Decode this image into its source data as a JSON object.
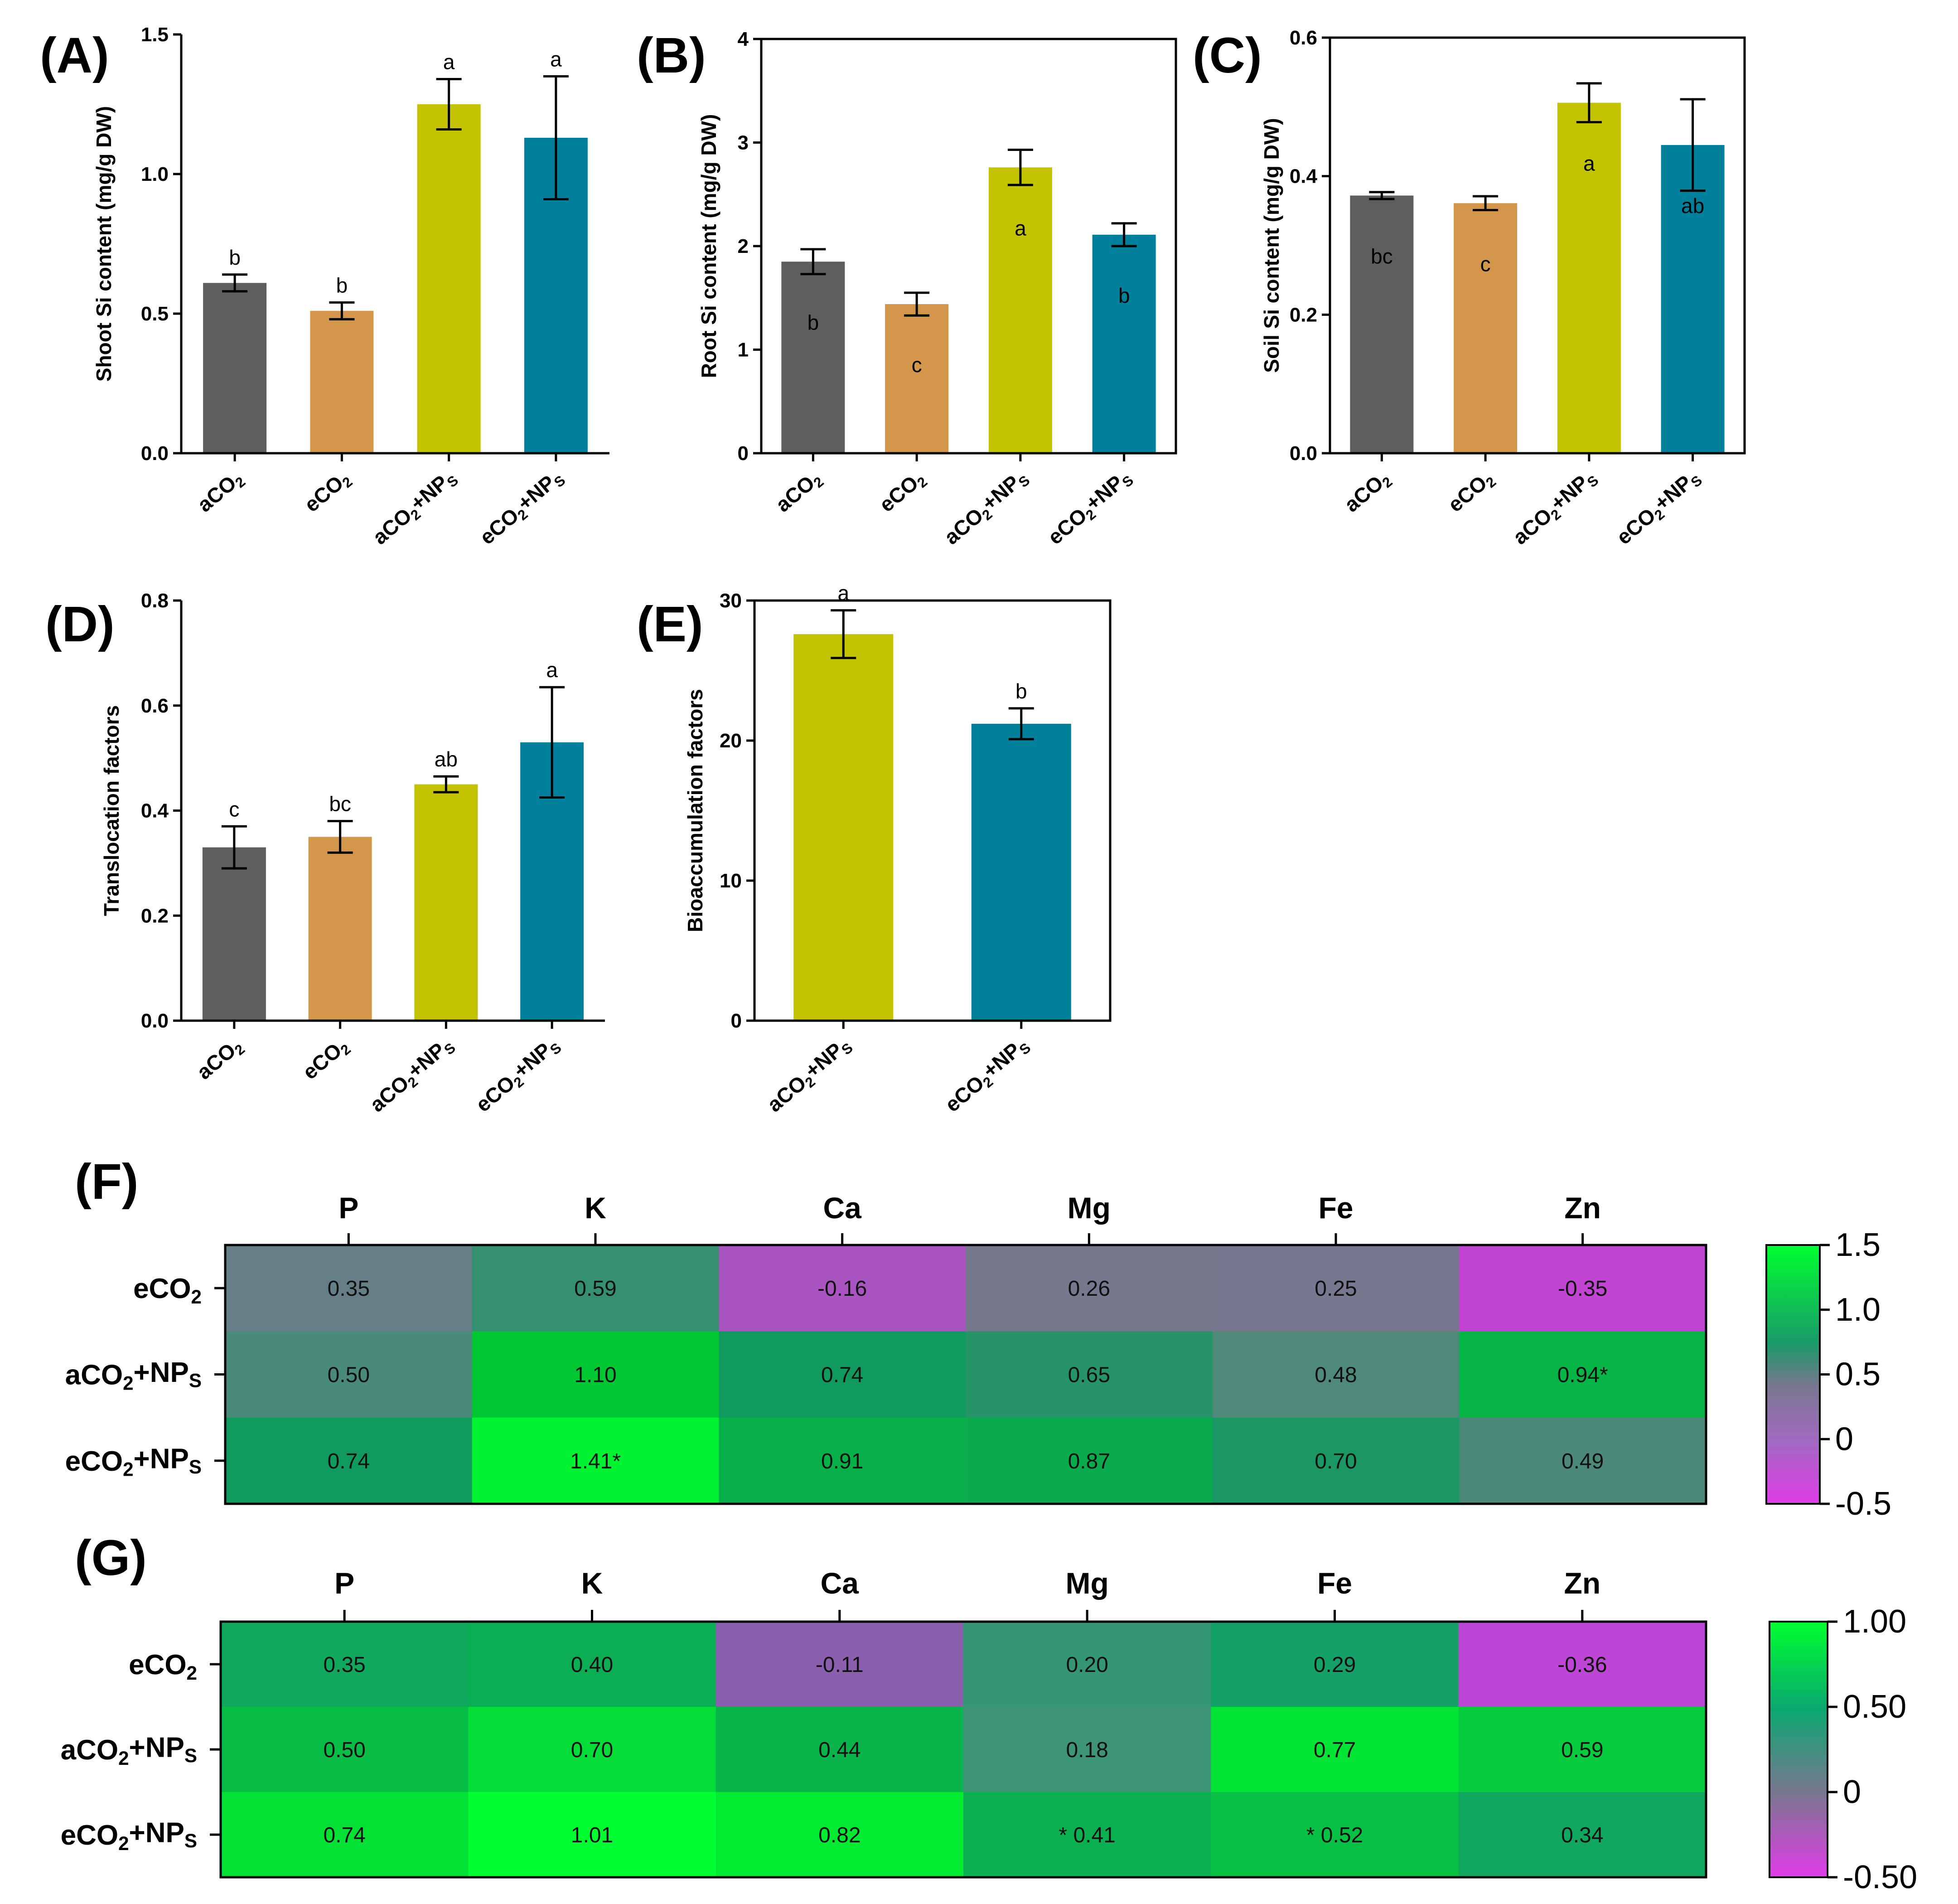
{
  "colors": {
    "aCO2": "#5e5e5e",
    "eCO2": "#d4964a",
    "aCO2_NPs": "#c3c300",
    "eCO2_NPs": "#00809a",
    "heat_low": "#e03ce8",
    "heat_mid": "#7a7690",
    "heat_high": "#00ff30"
  },
  "chart_data": [
    {
      "id": "A",
      "panel_label": "(A)",
      "type": "bar",
      "ylabel": "Shoot Si content (mg/g DW)",
      "ylim": [
        0,
        1.5
      ],
      "yticks": [
        "0.0",
        "0.5",
        "1.0",
        "1.5"
      ],
      "frame": "open",
      "categories": [
        "aCO2",
        "eCO2",
        "aCO2+NPs",
        "eCO2+NPs"
      ],
      "values": [
        0.61,
        0.51,
        1.25,
        1.13
      ],
      "errors": [
        0.03,
        0.03,
        0.09,
        0.22
      ],
      "letters": [
        "b",
        "b",
        "a",
        "a"
      ],
      "letter_position": "above"
    },
    {
      "id": "B",
      "panel_label": "(B)",
      "type": "bar",
      "ylabel": "Root Si content (mg/g DW)",
      "ylim": [
        0,
        4
      ],
      "yticks": [
        "0",
        "1",
        "2",
        "3",
        "4"
      ],
      "frame": "box",
      "categories": [
        "aCO2",
        "eCO2",
        "aCO2+NPs",
        "eCO2+NPs"
      ],
      "values": [
        1.85,
        1.44,
        2.76,
        2.11
      ],
      "errors": [
        0.12,
        0.11,
        0.17,
        0.11
      ],
      "letters": [
        "b",
        "c",
        "a",
        "b"
      ],
      "letter_position": "inside"
    },
    {
      "id": "C",
      "panel_label": "(C)",
      "type": "bar",
      "ylabel": "Soil Si content (mg/g DW)",
      "ylim": [
        0,
        0.6
      ],
      "yticks": [
        "0.0",
        "0.2",
        "0.4",
        "0.6"
      ],
      "frame": "box",
      "categories": [
        "aCO2",
        "eCO2",
        "aCO2+NPs",
        "eCO2+NPs"
      ],
      "values": [
        0.372,
        0.361,
        0.506,
        0.445
      ],
      "errors": [
        0.005,
        0.01,
        0.028,
        0.066
      ],
      "letters": [
        "bc",
        "c",
        "a",
        "ab"
      ],
      "letter_position": "inside"
    },
    {
      "id": "D",
      "panel_label": "(D)",
      "type": "bar",
      "ylabel": "Translocation factors",
      "ylim": [
        0,
        0.8
      ],
      "yticks": [
        "0.0",
        "0.2",
        "0.4",
        "0.6",
        "0.8"
      ],
      "frame": "open",
      "categories": [
        "aCO2",
        "eCO2",
        "aCO2+NPs",
        "eCO2+NPs"
      ],
      "values": [
        0.33,
        0.35,
        0.45,
        0.53
      ],
      "errors": [
        0.04,
        0.03,
        0.015,
        0.105
      ],
      "letters": [
        "c",
        "bc",
        "ab",
        "a"
      ],
      "letter_position": "above"
    },
    {
      "id": "E",
      "panel_label": "(E)",
      "type": "bar",
      "ylabel": "Bioaccumulation factors",
      "ylim": [
        0,
        30
      ],
      "yticks": [
        "0",
        "10",
        "20",
        "30"
      ],
      "frame": "box",
      "categories": [
        "aCO2+NPs",
        "eCO2+NPs"
      ],
      "values": [
        27.6,
        21.2
      ],
      "errors": [
        1.7,
        1.1
      ],
      "letters": [
        "a",
        "b"
      ],
      "letter_position": "above"
    },
    {
      "id": "F",
      "panel_label": "(F)",
      "type": "heatmap",
      "columns": [
        "P",
        "K",
        "Ca",
        "Mg",
        "Fe",
        "Zn"
      ],
      "rows": [
        "eCO2",
        "aCO2+NPs",
        "eCO2+NPs"
      ],
      "values": [
        [
          0.35,
          0.59,
          -0.16,
          0.26,
          0.25,
          -0.35
        ],
        [
          0.5,
          1.1,
          0.74,
          0.65,
          0.48,
          0.94
        ],
        [
          0.74,
          1.41,
          0.91,
          0.87,
          0.7,
          0.49
        ]
      ],
      "cell_text": [
        [
          "0.35",
          "0.59",
          "-0.16",
          "0.26",
          "0.25",
          "-0.35"
        ],
        [
          "0.50",
          "1.10",
          "0.74",
          "0.65",
          "0.48",
          "0.94*"
        ],
        [
          "0.74",
          "1.41*",
          "0.91",
          "0.87",
          "0.70",
          "0.49"
        ]
      ],
      "color_scale": {
        "min": -0.5,
        "max": 1.5,
        "ticks": [
          "1.5",
          "1.0",
          "0.5",
          "0",
          "-0.5"
        ]
      }
    },
    {
      "id": "G",
      "panel_label": "(G)",
      "type": "heatmap",
      "columns": [
        "P",
        "K",
        "Ca",
        "Mg",
        "Fe",
        "Zn"
      ],
      "rows": [
        "eCO2",
        "aCO2+NPs",
        "eCO2+NPs"
      ],
      "values": [
        [
          0.35,
          0.4,
          -0.11,
          0.2,
          0.29,
          -0.36
        ],
        [
          0.5,
          0.7,
          0.44,
          0.18,
          0.77,
          0.59
        ],
        [
          0.74,
          1.01,
          0.82,
          0.41,
          0.52,
          0.34
        ]
      ],
      "cell_text": [
        [
          "0.35",
          "0.40",
          "-0.11",
          "0.20",
          "0.29",
          "-0.36"
        ],
        [
          "0.50",
          "0.70",
          "0.44",
          "0.18",
          "0.77",
          "0.59"
        ],
        [
          "0.74",
          "1.01",
          "0.82",
          "* 0.41",
          "* 0.52",
          "0.34"
        ]
      ],
      "color_scale": {
        "min": -0.5,
        "max": 1.0,
        "ticks": [
          "1.00",
          "0.50",
          "0",
          "-0.50"
        ]
      }
    }
  ]
}
